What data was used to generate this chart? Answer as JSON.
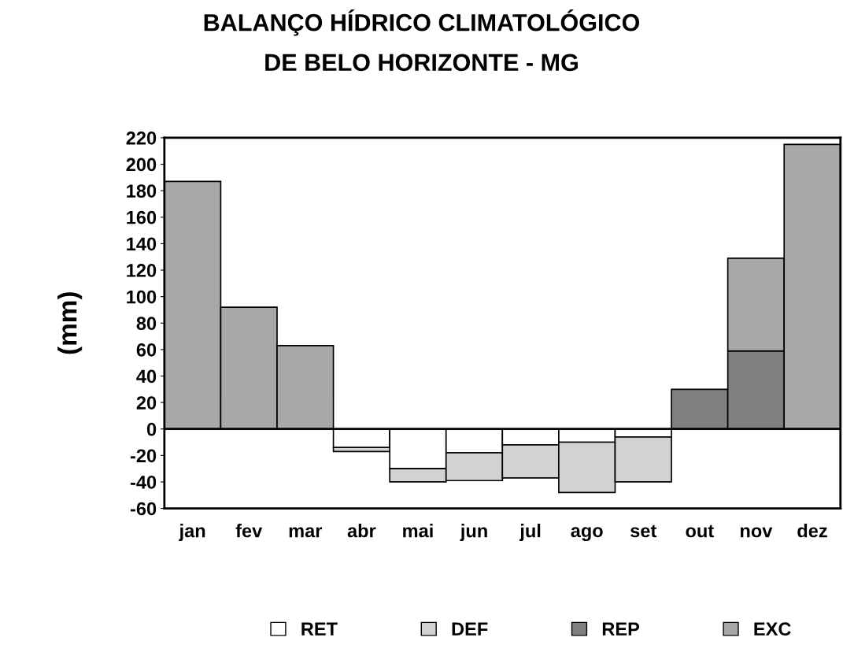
{
  "chart_data": {
    "type": "bar",
    "title": "BALANÇO HÍDRICO CLIMATOLÓGICO\nDE BELO HORIZONTE - MG",
    "ylabel": "(mm)",
    "stacked": true,
    "categories": [
      "jan",
      "fev",
      "mar",
      "abr",
      "mai",
      "jun",
      "jul",
      "ago",
      "set",
      "out",
      "nov",
      "dez"
    ],
    "series": [
      {
        "name": "RET",
        "color": "#ffffff",
        "values": [
          null,
          null,
          null,
          -14,
          -30,
          -18,
          -12,
          -10,
          -6,
          null,
          null,
          null
        ]
      },
      {
        "name": "DEF",
        "color": "#d2d2d2",
        "values": [
          null,
          null,
          null,
          -3,
          -10,
          -21,
          -25,
          -38,
          -34,
          null,
          null,
          null
        ]
      },
      {
        "name": "REP",
        "color": "#808080",
        "values": [
          null,
          null,
          null,
          null,
          null,
          null,
          null,
          null,
          null,
          30,
          59,
          null
        ]
      },
      {
        "name": "EXC",
        "color": "#a8a8a8",
        "values": [
          187,
          92,
          63,
          null,
          null,
          null,
          null,
          null,
          null,
          null,
          70,
          215
        ]
      }
    ],
    "ylim": [
      -60,
      220
    ],
    "yticks": [
      -60,
      -40,
      -20,
      0,
      20,
      40,
      60,
      80,
      100,
      120,
      140,
      160,
      180,
      200,
      220
    ],
    "legend": "bottom"
  }
}
